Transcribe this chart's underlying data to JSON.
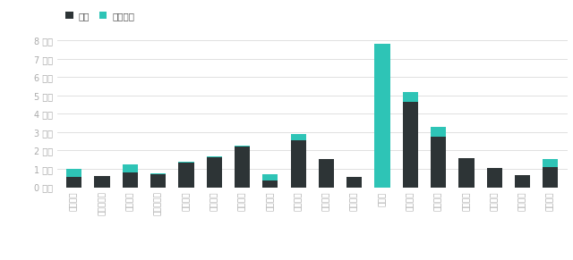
{
  "categories": [
    "北京汽车",
    "北汽新能源",
    "东风汽车",
    "合众新能源",
    "华晨宝马",
    "吉利汽车",
    "理想汽车",
    "零跑汽车",
    "上海汽车",
    "上汽大众",
    "上汽通用",
    "特斯拉",
    "蔚来汽车",
    "小鹏汽车",
    "一汽大众",
    "宇通客车",
    "长安汽车",
    "长城汽车"
  ],
  "lfp": [
    0.45,
    0.0,
    0.45,
    0.05,
    0.05,
    0.05,
    0.05,
    0.35,
    0.35,
    0.0,
    0.0,
    7.8,
    0.55,
    0.55,
    0.0,
    0.0,
    0.0,
    0.45
  ],
  "ternary": [
    0.55,
    0.6,
    0.8,
    0.7,
    1.35,
    1.65,
    2.2,
    0.35,
    2.55,
    1.55,
    0.55,
    0.0,
    4.65,
    2.75,
    1.6,
    1.05,
    0.65,
    1.1
  ],
  "lfp_color": "#2ec4b6",
  "ternary_color": "#2d3436",
  "background_color": "#ffffff",
  "grid_color": "#e0e0e0",
  "tick_color": "#aaaaaa",
  "legend_lfp": "磷酸铁锂",
  "legend_ternary": "三元",
  "ylabel": "百万",
  "yticks": [
    0,
    1,
    2,
    3,
    4,
    5,
    6,
    7,
    8
  ],
  "ytick_labels": [
    "0 百万",
    "1 百万",
    "2 百万",
    "3 百万",
    "4 百万",
    "5 百万",
    "6 百万",
    "7 百万",
    "8 百万"
  ]
}
